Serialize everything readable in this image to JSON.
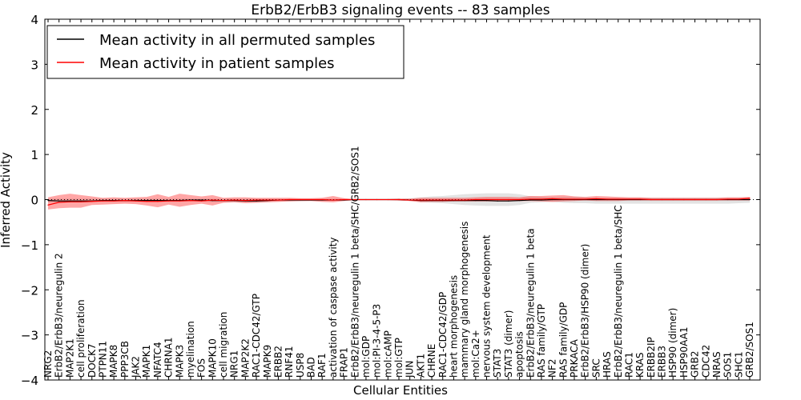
{
  "chart_data": {
    "type": "line",
    "title": "ErbB2/ErbB3 signaling events -- 83 samples",
    "xlabel": "Cellular Entities",
    "ylabel": "Inferred Activity",
    "ylim": [
      -4,
      4
    ],
    "yticks": [
      -4,
      -3,
      -2,
      -1,
      0,
      1,
      2,
      3,
      4
    ],
    "ytick_labels": [
      "−4",
      "−3",
      "−2",
      "−1",
      "0",
      "1",
      "2",
      "3",
      "4"
    ],
    "legend_position": "upper-left",
    "categories": [
      "NRG2",
      "ErbB2/ErbB3/neuregulin 2",
      "MAP2K1",
      "cell proliferation",
      "DOCK7",
      "PTPN11",
      "MAPK8",
      "PPP3CB",
      "JAK2",
      "MAPK1",
      "NFATC4",
      "CHRNA1",
      "MAPK3",
      "myelination",
      "FOS",
      "MAPK10",
      "cell migration",
      "NRG1",
      "MAP2K2",
      "RAC1-CDC42/GTP",
      "MAPK9",
      "ERBB2",
      "RNF41",
      "USP8",
      "BAD",
      "RAF1",
      "activation of caspase activity",
      "FRAP1",
      "ErbB2/ErbB3/neuregulin 1 beta/SHC/GRB2/SOS1",
      "mol:GDP",
      "mol:PI-3-4-5-P3",
      "mol:cAMP",
      "mol:GTP",
      "JUN",
      "AKT1",
      "CHRNE",
      "RAC1-CDC42/GDP",
      "heart morphogenesis",
      "mammary gland morphogenesis",
      "mol:Ca2+",
      "nervous system development",
      "STAT3",
      "STAT3 (dimer)",
      "apoptosis",
      "ErbB2/ErbB3/neuregulin 1 beta",
      "RAS family/GTP",
      "NF2",
      "RAS family/GDP",
      "PRKACA",
      "ErbB2/ErbB3/HSP90 (dimer)",
      "SRC",
      "HRAS",
      "ErbB2/ErbB3/neuregulin 1 beta/SHC",
      "RAC1",
      "KRAS",
      "ERBB2IP",
      "ERBB3",
      "HSP90 (dimer)",
      "HSP90AA1",
      "GRB2",
      "CDC42",
      "NRAS",
      "SOS1",
      "SHC1",
      "GRB2/SOS1"
    ],
    "series": [
      {
        "name": "Mean activity in all permuted samples",
        "color": "#000000",
        "values": [
          -0.02,
          -0.03,
          -0.03,
          -0.03,
          -0.03,
          -0.02,
          -0.02,
          -0.02,
          -0.02,
          -0.02,
          -0.02,
          -0.02,
          -0.02,
          -0.01,
          -0.01,
          -0.02,
          -0.02,
          -0.02,
          -0.03,
          -0.03,
          -0.02,
          -0.01,
          -0.01,
          -0.01,
          -0.01,
          -0.01,
          -0.01,
          -0.01,
          0,
          0,
          0,
          0,
          0,
          -0.01,
          -0.02,
          -0.02,
          -0.02,
          -0.02,
          -0.02,
          -0.02,
          -0.02,
          -0.03,
          -0.03,
          -0.02,
          -0.01,
          -0.01,
          0,
          0,
          0,
          0,
          0,
          0,
          0,
          0,
          0,
          0,
          0,
          0,
          0,
          0,
          0,
          0,
          0,
          0,
          0
        ],
        "band_low": [
          -0.06,
          -0.06,
          -0.06,
          -0.06,
          -0.06,
          -0.05,
          -0.05,
          -0.05,
          -0.05,
          -0.05,
          -0.05,
          -0.05,
          -0.05,
          -0.04,
          -0.04,
          -0.05,
          -0.05,
          -0.05,
          -0.06,
          -0.06,
          -0.05,
          -0.04,
          -0.04,
          -0.04,
          -0.03,
          -0.03,
          -0.03,
          -0.02,
          -0.01,
          -0.01,
          -0.01,
          -0.01,
          -0.02,
          -0.03,
          -0.05,
          -0.07,
          -0.08,
          -0.1,
          -0.12,
          -0.13,
          -0.14,
          -0.14,
          -0.14,
          -0.12,
          -0.07,
          -0.06,
          -0.05,
          -0.07,
          -0.08,
          -0.08,
          -0.09,
          -0.09,
          -0.09,
          -0.09,
          -0.09,
          -0.09,
          -0.09,
          -0.09,
          -0.09,
          -0.09,
          -0.09,
          -0.09,
          -0.09,
          -0.08,
          -0.07
        ],
        "band_high": [
          0.02,
          0.02,
          0.02,
          0.02,
          0.02,
          0.02,
          0.02,
          0.02,
          0.02,
          0.02,
          0.02,
          0.02,
          0.02,
          0.02,
          0.02,
          0.02,
          0.02,
          0.02,
          0.02,
          0.02,
          0.02,
          0.02,
          0.02,
          0.02,
          0.02,
          0.02,
          0.02,
          0.02,
          0.01,
          0.01,
          0.01,
          0.01,
          0.02,
          0.03,
          0.05,
          0.07,
          0.08,
          0.1,
          0.12,
          0.13,
          0.14,
          0.14,
          0.14,
          0.12,
          0.07,
          0.06,
          0.05,
          0.06,
          0.06,
          0.05,
          0.04,
          0.04,
          0.04,
          0.04,
          0.04,
          0.04,
          0.04,
          0.04,
          0.04,
          0.04,
          0.04,
          0.04,
          0.04,
          0.04,
          0.04
        ]
      },
      {
        "name": "Mean activity in patient samples",
        "color": "#ff0000",
        "values": [
          -0.12,
          -0.06,
          -0.05,
          -0.05,
          -0.04,
          -0.03,
          -0.03,
          -0.02,
          -0.03,
          -0.04,
          -0.04,
          -0.03,
          -0.03,
          -0.02,
          -0.03,
          -0.01,
          -0.02,
          -0.01,
          -0.02,
          -0.01,
          -0.01,
          -0.01,
          0,
          0,
          0,
          0,
          -0.01,
          0,
          0,
          0,
          0,
          0,
          0,
          -0.01,
          -0.01,
          -0.01,
          -0.01,
          -0.01,
          -0.01,
          0,
          0,
          0,
          0,
          0,
          0.01,
          0.01,
          0.02,
          0.01,
          0.01,
          0.01,
          0.02,
          0.01,
          0.01,
          0.01,
          0.01,
          0,
          0,
          0,
          0,
          0,
          0,
          0,
          0.01,
          0.01,
          0.03
        ],
        "band_low": [
          -0.22,
          -0.19,
          -0.18,
          -0.18,
          -0.12,
          -0.11,
          -0.1,
          -0.09,
          -0.1,
          -0.13,
          -0.17,
          -0.11,
          -0.16,
          -0.12,
          -0.09,
          -0.13,
          -0.07,
          -0.06,
          -0.08,
          -0.07,
          -0.06,
          -0.05,
          -0.04,
          -0.03,
          -0.03,
          -0.05,
          -0.06,
          -0.03,
          -0.01,
          -0.01,
          -0.01,
          -0.01,
          -0.02,
          -0.03,
          -0.06,
          -0.05,
          -0.05,
          -0.04,
          -0.04,
          -0.04,
          -0.04,
          -0.04,
          -0.04,
          -0.03,
          -0.03,
          -0.04,
          -0.05,
          -0.04,
          -0.03,
          -0.02,
          -0.03,
          -0.03,
          -0.03,
          -0.02,
          -0.02,
          -0.02,
          -0.02,
          -0.02,
          -0.02,
          -0.02,
          -0.02,
          -0.02,
          -0.02,
          -0.02,
          -0.02
        ],
        "band_high": [
          0.05,
          0.1,
          0.13,
          0.1,
          0.07,
          0.04,
          0.05,
          0.04,
          0.05,
          0.06,
          0.12,
          0.06,
          0.13,
          0.1,
          0.07,
          0.1,
          0.04,
          0.05,
          0.05,
          0.04,
          0.04,
          0.04,
          0.04,
          0.03,
          0.03,
          0.04,
          0.08,
          0.03,
          0.01,
          0.01,
          0.01,
          0.01,
          0.02,
          0.02,
          0.04,
          0.04,
          0.04,
          0.04,
          0.04,
          0.05,
          0.06,
          0.06,
          0.06,
          0.05,
          0.08,
          0.08,
          0.09,
          0.1,
          0.07,
          0.06,
          0.08,
          0.07,
          0.06,
          0.05,
          0.05,
          0.04,
          0.04,
          0.04,
          0.04,
          0.04,
          0.04,
          0.04,
          0.05,
          0.05,
          0.06
        ]
      }
    ],
    "zero_line": {
      "value": 0,
      "style": "dotted"
    }
  }
}
